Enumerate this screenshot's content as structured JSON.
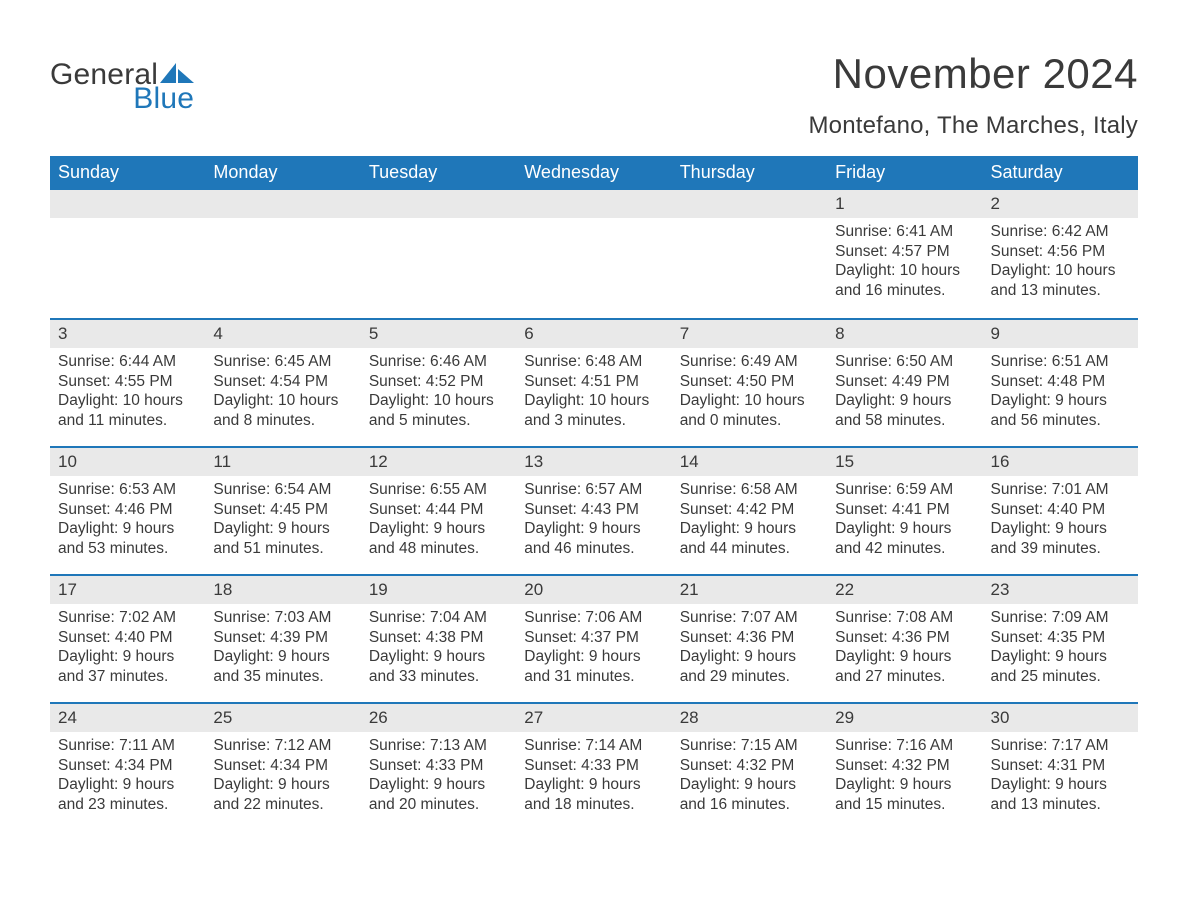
{
  "brand": {
    "general": "General",
    "blue": "Blue",
    "icon_color": "#1f77b9"
  },
  "title": "November 2024",
  "location": "Montefano, The Marches, Italy",
  "colors": {
    "header_bg": "#1f77b9",
    "header_text": "#ffffff",
    "daynum_bg": "#e9e9e9",
    "text": "#3a3a3a",
    "row_divider": "#1f77b9",
    "background": "#ffffff"
  },
  "weekdays": [
    "Sunday",
    "Monday",
    "Tuesday",
    "Wednesday",
    "Thursday",
    "Friday",
    "Saturday"
  ],
  "weeks": [
    [
      null,
      null,
      null,
      null,
      null,
      {
        "n": "1",
        "sunrise": "Sunrise: 6:41 AM",
        "sunset": "Sunset: 4:57 PM",
        "d1": "Daylight: 10 hours",
        "d2": "and 16 minutes."
      },
      {
        "n": "2",
        "sunrise": "Sunrise: 6:42 AM",
        "sunset": "Sunset: 4:56 PM",
        "d1": "Daylight: 10 hours",
        "d2": "and 13 minutes."
      }
    ],
    [
      {
        "n": "3",
        "sunrise": "Sunrise: 6:44 AM",
        "sunset": "Sunset: 4:55 PM",
        "d1": "Daylight: 10 hours",
        "d2": "and 11 minutes."
      },
      {
        "n": "4",
        "sunrise": "Sunrise: 6:45 AM",
        "sunset": "Sunset: 4:54 PM",
        "d1": "Daylight: 10 hours",
        "d2": "and 8 minutes."
      },
      {
        "n": "5",
        "sunrise": "Sunrise: 6:46 AM",
        "sunset": "Sunset: 4:52 PM",
        "d1": "Daylight: 10 hours",
        "d2": "and 5 minutes."
      },
      {
        "n": "6",
        "sunrise": "Sunrise: 6:48 AM",
        "sunset": "Sunset: 4:51 PM",
        "d1": "Daylight: 10 hours",
        "d2": "and 3 minutes."
      },
      {
        "n": "7",
        "sunrise": "Sunrise: 6:49 AM",
        "sunset": "Sunset: 4:50 PM",
        "d1": "Daylight: 10 hours",
        "d2": "and 0 minutes."
      },
      {
        "n": "8",
        "sunrise": "Sunrise: 6:50 AM",
        "sunset": "Sunset: 4:49 PM",
        "d1": "Daylight: 9 hours",
        "d2": "and 58 minutes."
      },
      {
        "n": "9",
        "sunrise": "Sunrise: 6:51 AM",
        "sunset": "Sunset: 4:48 PM",
        "d1": "Daylight: 9 hours",
        "d2": "and 56 minutes."
      }
    ],
    [
      {
        "n": "10",
        "sunrise": "Sunrise: 6:53 AM",
        "sunset": "Sunset: 4:46 PM",
        "d1": "Daylight: 9 hours",
        "d2": "and 53 minutes."
      },
      {
        "n": "11",
        "sunrise": "Sunrise: 6:54 AM",
        "sunset": "Sunset: 4:45 PM",
        "d1": "Daylight: 9 hours",
        "d2": "and 51 minutes."
      },
      {
        "n": "12",
        "sunrise": "Sunrise: 6:55 AM",
        "sunset": "Sunset: 4:44 PM",
        "d1": "Daylight: 9 hours",
        "d2": "and 48 minutes."
      },
      {
        "n": "13",
        "sunrise": "Sunrise: 6:57 AM",
        "sunset": "Sunset: 4:43 PM",
        "d1": "Daylight: 9 hours",
        "d2": "and 46 minutes."
      },
      {
        "n": "14",
        "sunrise": "Sunrise: 6:58 AM",
        "sunset": "Sunset: 4:42 PM",
        "d1": "Daylight: 9 hours",
        "d2": "and 44 minutes."
      },
      {
        "n": "15",
        "sunrise": "Sunrise: 6:59 AM",
        "sunset": "Sunset: 4:41 PM",
        "d1": "Daylight: 9 hours",
        "d2": "and 42 minutes."
      },
      {
        "n": "16",
        "sunrise": "Sunrise: 7:01 AM",
        "sunset": "Sunset: 4:40 PM",
        "d1": "Daylight: 9 hours",
        "d2": "and 39 minutes."
      }
    ],
    [
      {
        "n": "17",
        "sunrise": "Sunrise: 7:02 AM",
        "sunset": "Sunset: 4:40 PM",
        "d1": "Daylight: 9 hours",
        "d2": "and 37 minutes."
      },
      {
        "n": "18",
        "sunrise": "Sunrise: 7:03 AM",
        "sunset": "Sunset: 4:39 PM",
        "d1": "Daylight: 9 hours",
        "d2": "and 35 minutes."
      },
      {
        "n": "19",
        "sunrise": "Sunrise: 7:04 AM",
        "sunset": "Sunset: 4:38 PM",
        "d1": "Daylight: 9 hours",
        "d2": "and 33 minutes."
      },
      {
        "n": "20",
        "sunrise": "Sunrise: 7:06 AM",
        "sunset": "Sunset: 4:37 PM",
        "d1": "Daylight: 9 hours",
        "d2": "and 31 minutes."
      },
      {
        "n": "21",
        "sunrise": "Sunrise: 7:07 AM",
        "sunset": "Sunset: 4:36 PM",
        "d1": "Daylight: 9 hours",
        "d2": "and 29 minutes."
      },
      {
        "n": "22",
        "sunrise": "Sunrise: 7:08 AM",
        "sunset": "Sunset: 4:36 PM",
        "d1": "Daylight: 9 hours",
        "d2": "and 27 minutes."
      },
      {
        "n": "23",
        "sunrise": "Sunrise: 7:09 AM",
        "sunset": "Sunset: 4:35 PM",
        "d1": "Daylight: 9 hours",
        "d2": "and 25 minutes."
      }
    ],
    [
      {
        "n": "24",
        "sunrise": "Sunrise: 7:11 AM",
        "sunset": "Sunset: 4:34 PM",
        "d1": "Daylight: 9 hours",
        "d2": "and 23 minutes."
      },
      {
        "n": "25",
        "sunrise": "Sunrise: 7:12 AM",
        "sunset": "Sunset: 4:34 PM",
        "d1": "Daylight: 9 hours",
        "d2": "and 22 minutes."
      },
      {
        "n": "26",
        "sunrise": "Sunrise: 7:13 AM",
        "sunset": "Sunset: 4:33 PM",
        "d1": "Daylight: 9 hours",
        "d2": "and 20 minutes."
      },
      {
        "n": "27",
        "sunrise": "Sunrise: 7:14 AM",
        "sunset": "Sunset: 4:33 PM",
        "d1": "Daylight: 9 hours",
        "d2": "and 18 minutes."
      },
      {
        "n": "28",
        "sunrise": "Sunrise: 7:15 AM",
        "sunset": "Sunset: 4:32 PM",
        "d1": "Daylight: 9 hours",
        "d2": "and 16 minutes."
      },
      {
        "n": "29",
        "sunrise": "Sunrise: 7:16 AM",
        "sunset": "Sunset: 4:32 PM",
        "d1": "Daylight: 9 hours",
        "d2": "and 15 minutes."
      },
      {
        "n": "30",
        "sunrise": "Sunrise: 7:17 AM",
        "sunset": "Sunset: 4:31 PM",
        "d1": "Daylight: 9 hours",
        "d2": "and 13 minutes."
      }
    ]
  ]
}
